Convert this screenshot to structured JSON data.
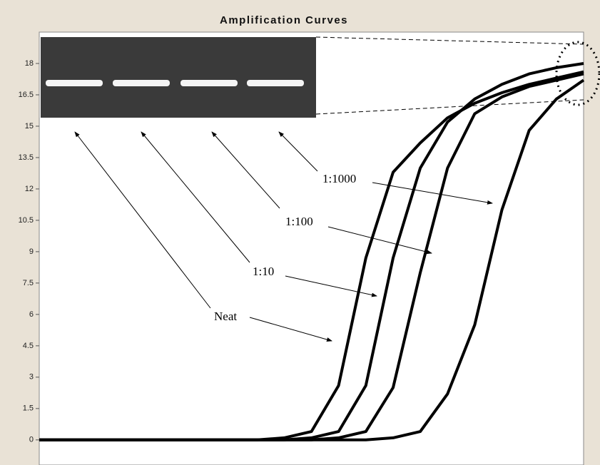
{
  "chart_data": {
    "type": "line",
    "title": "Amplification Curves",
    "categories": [
      null,
      null,
      null,
      null,
      null,
      null,
      null,
      null,
      null,
      null,
      null,
      null,
      null,
      null,
      null,
      null,
      null,
      null,
      null,
      null,
      null
    ],
    "series": [
      {
        "name": "Neat",
        "color": "#000000",
        "values": [
          0,
          0,
          0,
          0,
          0,
          0,
          0,
          0,
          0,
          0.1,
          0.4,
          2.6,
          8.7,
          12.8,
          14.2,
          15.4,
          16.1,
          16.6,
          17.0,
          17.3,
          17.6
        ]
      },
      {
        "name": "1:10",
        "color": "#000000",
        "values": [
          0,
          0,
          0,
          0,
          0,
          0,
          0,
          0,
          0,
          0,
          0.1,
          0.4,
          2.6,
          8.7,
          13.0,
          15.2,
          16.3,
          17.0,
          17.5,
          17.8,
          18.0
        ]
      },
      {
        "name": "1:100",
        "color": "#000000",
        "values": [
          0,
          0,
          0,
          0,
          0,
          0,
          0,
          0,
          0,
          0,
          0,
          0.1,
          0.4,
          2.5,
          8.0,
          13.0,
          15.6,
          16.4,
          16.9,
          17.2,
          17.5
        ]
      },
      {
        "name": "1:1000",
        "color": "#000000",
        "values": [
          0,
          0,
          0,
          0,
          0,
          0,
          0,
          0,
          0,
          0,
          0,
          0,
          0,
          0.1,
          0.4,
          2.2,
          5.5,
          11.0,
          14.8,
          16.3,
          17.2
        ]
      }
    ],
    "ylim": [
      -1.2,
      19.5
    ],
    "yticks": [
      0,
      1.5,
      3,
      4.5,
      6,
      7.5,
      9,
      10.5,
      12,
      13.5,
      15,
      16.5,
      18
    ]
  }
}
